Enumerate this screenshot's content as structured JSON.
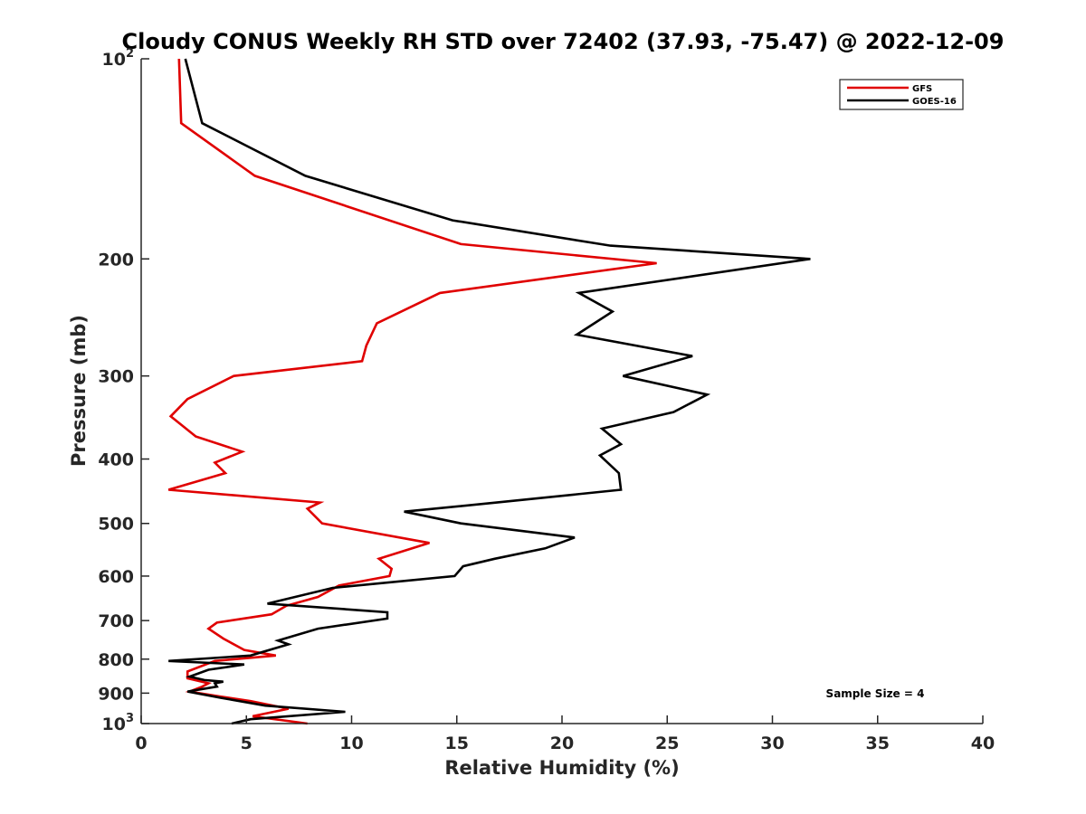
{
  "chart_data": {
    "type": "line",
    "title": "Cloudy CONUS Weekly RH STD over 72402 (37.93, -75.47) @ 2022-12-09",
    "xlabel": "Relative Humidity (%)",
    "ylabel": "Pressure (mb)",
    "xlim": [
      0,
      40
    ],
    "ylim": [
      100,
      1000
    ],
    "y_scale": "log",
    "y_direction": "reversed",
    "grid": false,
    "legend_position": "top-right",
    "annotation": "Sample Size = 4",
    "x_ticks": [
      "0",
      "5",
      "10",
      "15",
      "20",
      "25",
      "30",
      "35",
      "40"
    ],
    "y_ticks": [
      {
        "value": 100,
        "base": "10",
        "exp": "2"
      },
      {
        "value": 200,
        "label": "200"
      },
      {
        "value": 300,
        "label": "300"
      },
      {
        "value": 400,
        "label": "400"
      },
      {
        "value": 500,
        "label": "500"
      },
      {
        "value": 600,
        "label": "600"
      },
      {
        "value": 700,
        "label": "700"
      },
      {
        "value": 800,
        "label": "800"
      },
      {
        "value": 900,
        "label": "900"
      },
      {
        "value": 1000,
        "base": "10",
        "exp": "3"
      }
    ],
    "series": [
      {
        "name": "GFS",
        "color": "#e00000",
        "points": [
          [
            1.8,
            100
          ],
          [
            1.9,
            125
          ],
          [
            5.4,
            150
          ],
          [
            15.2,
            190
          ],
          [
            24.5,
            203
          ],
          [
            14.2,
            225
          ],
          [
            11.2,
            250
          ],
          [
            10.7,
            270
          ],
          [
            10.5,
            285
          ],
          [
            4.4,
            300
          ],
          [
            2.2,
            325
          ],
          [
            1.4,
            345
          ],
          [
            2.6,
            370
          ],
          [
            4.8,
            390
          ],
          [
            3.5,
            405
          ],
          [
            4.0,
            420
          ],
          [
            1.3,
            445
          ],
          [
            8.5,
            465
          ],
          [
            7.9,
            475
          ],
          [
            8.6,
            500
          ],
          [
            13.7,
            535
          ],
          [
            11.3,
            565
          ],
          [
            11.9,
            585
          ],
          [
            11.8,
            600
          ],
          [
            9.4,
            620
          ],
          [
            8.4,
            645
          ],
          [
            6.9,
            665
          ],
          [
            6.2,
            685
          ],
          [
            3.6,
            705
          ],
          [
            3.2,
            720
          ],
          [
            3.9,
            745
          ],
          [
            4.9,
            775
          ],
          [
            6.4,
            790
          ],
          [
            3.5,
            805
          ],
          [
            2.2,
            835
          ],
          [
            2.2,
            855
          ],
          [
            3.2,
            870
          ],
          [
            2.9,
            880
          ],
          [
            2.3,
            895
          ],
          [
            3.7,
            910
          ],
          [
            5.2,
            925
          ],
          [
            7.0,
            950
          ],
          [
            5.3,
            975
          ],
          [
            7.9,
            1000
          ]
        ]
      },
      {
        "name": "GOES-16",
        "color": "#000000",
        "points": [
          [
            2.1,
            100
          ],
          [
            2.9,
            125
          ],
          [
            7.8,
            150
          ],
          [
            14.8,
            175
          ],
          [
            22.3,
            191
          ],
          [
            31.8,
            200
          ],
          [
            20.8,
            225
          ],
          [
            22.4,
            240
          ],
          [
            20.7,
            260
          ],
          [
            26.2,
            280
          ],
          [
            22.9,
            300
          ],
          [
            26.9,
            320
          ],
          [
            25.3,
            340
          ],
          [
            21.9,
            360
          ],
          [
            22.8,
            380
          ],
          [
            21.8,
            395
          ],
          [
            22.7,
            420
          ],
          [
            22.8,
            445
          ],
          [
            16.9,
            465
          ],
          [
            12.5,
            480
          ],
          [
            15.2,
            500
          ],
          [
            20.6,
            525
          ],
          [
            19.2,
            545
          ],
          [
            16.8,
            565
          ],
          [
            15.3,
            580
          ],
          [
            14.9,
            600
          ],
          [
            9.1,
            625
          ],
          [
            6.0,
            660
          ],
          [
            11.7,
            680
          ],
          [
            11.7,
            695
          ],
          [
            8.4,
            720
          ],
          [
            6.5,
            750
          ],
          [
            7.0,
            760
          ],
          [
            5.2,
            790
          ],
          [
            1.3,
            805
          ],
          [
            4.9,
            815
          ],
          [
            3.2,
            830
          ],
          [
            2.3,
            850
          ],
          [
            3.0,
            860
          ],
          [
            3.9,
            865
          ],
          [
            3.5,
            870
          ],
          [
            3.6,
            880
          ],
          [
            2.2,
            895
          ],
          [
            3.8,
            915
          ],
          [
            5.9,
            940
          ],
          [
            9.7,
            960
          ],
          [
            5.2,
            985
          ],
          [
            4.3,
            1000
          ]
        ]
      }
    ]
  }
}
